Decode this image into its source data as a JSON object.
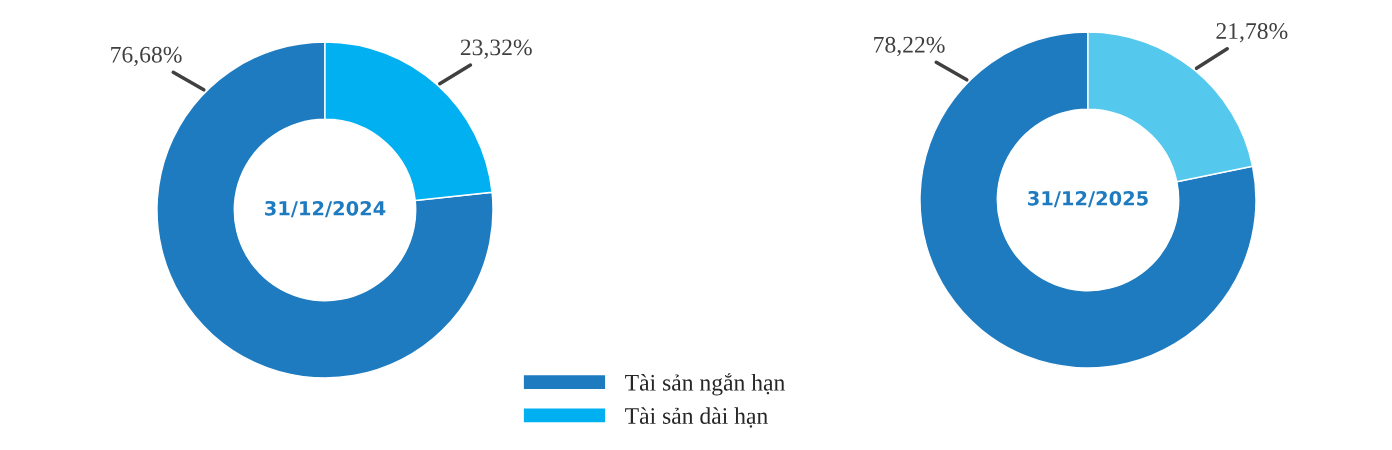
{
  "chart_data": [
    {
      "type": "donut",
      "title": "31/12/2024",
      "categories": [
        "Tài sản ngắn hạn",
        "Tài sản dài hạn"
      ],
      "values": [
        76.68,
        23.32
      ],
      "colors": [
        "#1f7bc0",
        "#00b0f0"
      ],
      "value_labels": [
        "76,68%",
        "23,32%"
      ],
      "legend": "bottom"
    },
    {
      "type": "donut",
      "title": "31/12/2025",
      "categories": [
        null,
        null
      ],
      "values": [
        78.22,
        21.78
      ],
      "colors": [
        "#1f7bc0",
        "#55c8ee"
      ],
      "value_labels": [
        "78,22%",
        "21,78%"
      ]
    }
  ]
}
